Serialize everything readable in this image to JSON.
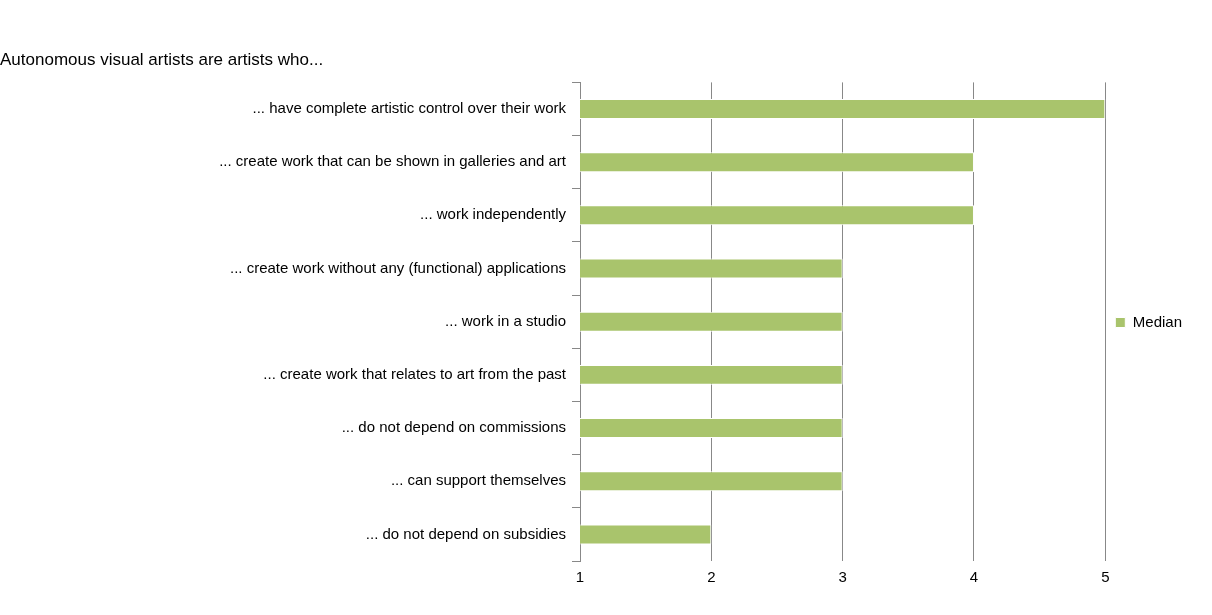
{
  "chart_data": {
    "type": "bar",
    "orientation": "horizontal",
    "title": "Autonomous visual artists are artists who...",
    "categories": [
      "... have complete artistic control over their work",
      "... create work that can be shown in galleries and art",
      "... work independently",
      "... create work without any (functional) applications",
      "... work in a studio",
      "... create work that relates to art from the past",
      "... do not depend on commissions",
      "... can support themselves",
      "... do not depend on subsidies"
    ],
    "series": [
      {
        "name": "Median",
        "color": "#a9c46c",
        "values": [
          5,
          4,
          4,
          3,
          3,
          3,
          3,
          3,
          2
        ]
      }
    ],
    "xlim": [
      1,
      5
    ],
    "xticks": [
      1,
      2,
      3,
      4,
      5
    ],
    "grid": "x",
    "legend": "right"
  }
}
